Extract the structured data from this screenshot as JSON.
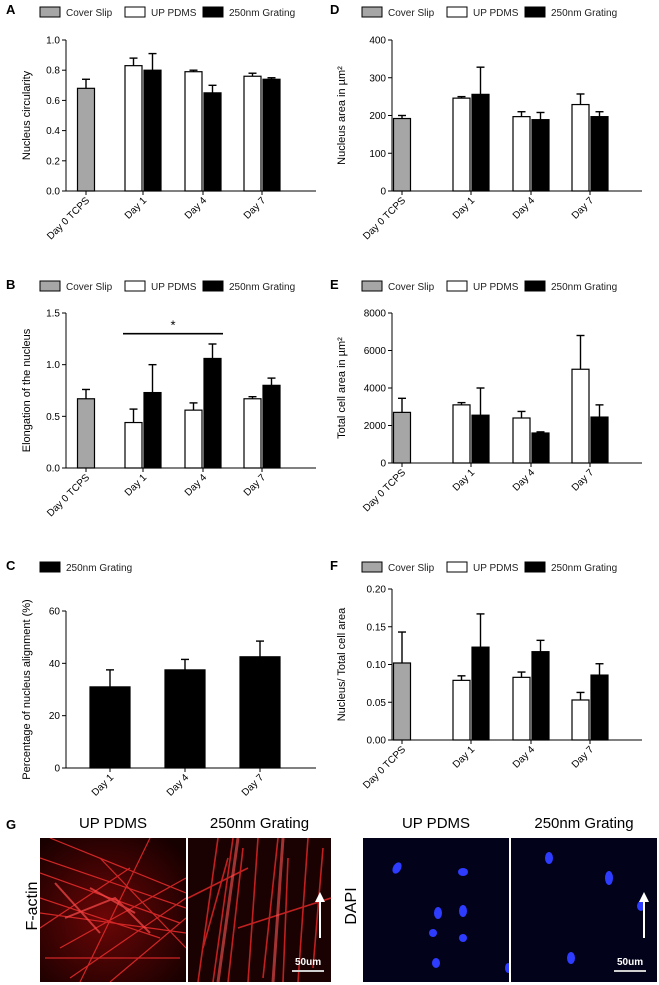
{
  "legend": {
    "cover_slip": "Cover Slip",
    "up_pdms": "UP PDMS",
    "grating": "250nm Grating"
  },
  "colors": {
    "cover_slip": "#a6a6a6",
    "up_pdms": "#ffffff",
    "grating": "#000000",
    "factin": "#d81f1f",
    "dapi": "#2a3cff"
  },
  "chart_data": [
    {
      "id": "A",
      "type": "bar",
      "ylabel": "Nucleus circularity",
      "ylim": [
        0,
        1.0
      ],
      "yticks": [
        "0.0",
        "0.2",
        "0.4",
        "0.6",
        "0.8",
        "1.0"
      ],
      "legend": [
        "Cover Slip",
        "UP PDMS",
        "250nm Grating"
      ],
      "categories": [
        "Day 0 TCPS",
        "Day 1",
        "Day 4",
        "Day 7"
      ],
      "series": [
        {
          "name": "Cover Slip",
          "values": [
            0.68,
            null,
            null,
            null
          ],
          "errors": [
            0.06,
            null,
            null,
            null
          ]
        },
        {
          "name": "UP PDMS",
          "values": [
            null,
            0.83,
            0.79,
            0.76
          ],
          "errors": [
            null,
            0.05,
            0.01,
            0.02
          ]
        },
        {
          "name": "250nm Grating",
          "values": [
            null,
            0.8,
            0.65,
            0.74
          ],
          "errors": [
            null,
            0.11,
            0.05,
            0.01
          ]
        }
      ]
    },
    {
      "id": "B",
      "type": "bar",
      "ylabel": "Elongation of the nucleus",
      "ylim": [
        0,
        1.5
      ],
      "yticks": [
        "0.0",
        "0.5",
        "1.0",
        "1.5"
      ],
      "legend": [
        "Cover Slip",
        "UP PDMS",
        "250nm Grating"
      ],
      "categories": [
        "Day 0 TCPS",
        "Day 1",
        "Day 4",
        "Day 7"
      ],
      "series": [
        {
          "name": "Cover Slip",
          "values": [
            0.67,
            null,
            null,
            null
          ],
          "errors": [
            0.09,
            null,
            null,
            null
          ]
        },
        {
          "name": "UP PDMS",
          "values": [
            null,
            0.44,
            0.56,
            0.67
          ],
          "errors": [
            null,
            0.13,
            0.07,
            0.02
          ]
        },
        {
          "name": "250nm Grating",
          "values": [
            null,
            0.73,
            1.06,
            0.8
          ],
          "errors": [
            null,
            0.27,
            0.14,
            0.07
          ]
        }
      ],
      "significance": {
        "label": "*",
        "from": "Day 1",
        "to": "Day 4",
        "at": 1.3
      }
    },
    {
      "id": "C",
      "type": "bar",
      "ylabel": "Percentage of nucleus alignment (%)",
      "ylim": [
        0,
        60
      ],
      "yticks": [
        "0",
        "20",
        "40",
        "60"
      ],
      "legend": [
        "250nm Grating"
      ],
      "categories": [
        "Day 1",
        "Day 4",
        "Day 7"
      ],
      "series": [
        {
          "name": "250nm Grating",
          "values": [
            31,
            37.5,
            42.5
          ],
          "errors": [
            6.5,
            4,
            6
          ]
        }
      ]
    },
    {
      "id": "D",
      "type": "bar",
      "ylabel": "Nucleus area in µm²",
      "ylim": [
        0,
        400
      ],
      "yticks": [
        "0",
        "100",
        "200",
        "300",
        "400"
      ],
      "legend": [
        "Cover Slip",
        "UP PDMS",
        "250nm Grating"
      ],
      "categories": [
        "Day 0 TCPS",
        "Day 1",
        "Day 4",
        "Day 7"
      ],
      "series": [
        {
          "name": "Cover Slip",
          "values": [
            192,
            null,
            null,
            null
          ],
          "errors": [
            8,
            null,
            null,
            null
          ]
        },
        {
          "name": "UP PDMS",
          "values": [
            null,
            246,
            197,
            229
          ],
          "errors": [
            null,
            4,
            13,
            28
          ]
        },
        {
          "name": "250nm Grating",
          "values": [
            null,
            256,
            189,
            197
          ],
          "errors": [
            null,
            72,
            19,
            13
          ]
        }
      ]
    },
    {
      "id": "E",
      "type": "bar",
      "ylabel": "Total cell area in µm²",
      "ylim": [
        0,
        8000
      ],
      "yticks": [
        "0",
        "2000",
        "4000",
        "6000",
        "8000"
      ],
      "legend": [
        "Cover Slip",
        "UP PDMS",
        "250nm Grating"
      ],
      "categories": [
        "Day 0 TCPS",
        "Day 1",
        "Day 4",
        "Day 7"
      ],
      "series": [
        {
          "name": "Cover Slip",
          "values": [
            2700,
            null,
            null,
            null
          ],
          "errors": [
            750,
            null,
            null,
            null
          ]
        },
        {
          "name": "UP PDMS",
          "values": [
            null,
            3100,
            2400,
            5000
          ],
          "errors": [
            null,
            120,
            350,
            1800
          ]
        },
        {
          "name": "250nm Grating",
          "values": [
            null,
            2550,
            1600,
            2450
          ],
          "errors": [
            null,
            1450,
            60,
            650
          ]
        }
      ]
    },
    {
      "id": "F",
      "type": "bar",
      "ylabel": "Nucleus/ Total cell area",
      "ylim": [
        0,
        0.2
      ],
      "yticks": [
        "0.00",
        "0.05",
        "0.10",
        "0.15",
        "0.20"
      ],
      "legend": [
        "Cover Slip",
        "UP PDMS",
        "250nm Grating"
      ],
      "categories": [
        "Day 0 TCPS",
        "Day 1",
        "Day 4",
        "Day 7"
      ],
      "series": [
        {
          "name": "Cover Slip",
          "values": [
            0.102,
            null,
            null,
            null
          ],
          "errors": [
            0.041,
            null,
            null,
            null
          ]
        },
        {
          "name": "UP PDMS",
          "values": [
            null,
            0.079,
            0.083,
            0.053
          ],
          "errors": [
            null,
            0.006,
            0.007,
            0.01
          ]
        },
        {
          "name": "250nm Grating",
          "values": [
            null,
            0.123,
            0.117,
            0.086
          ],
          "errors": [
            null,
            0.044,
            0.015,
            0.015
          ]
        }
      ]
    }
  ],
  "panel_g": {
    "label": "G",
    "left_group": {
      "side_label": "F-actin",
      "titles": [
        "UP PDMS",
        "250nm Grating"
      ],
      "scale": "50um"
    },
    "right_group": {
      "side_label": "DAPI",
      "titles": [
        "UP PDMS",
        "250nm Grating"
      ],
      "scale": "50um"
    }
  }
}
